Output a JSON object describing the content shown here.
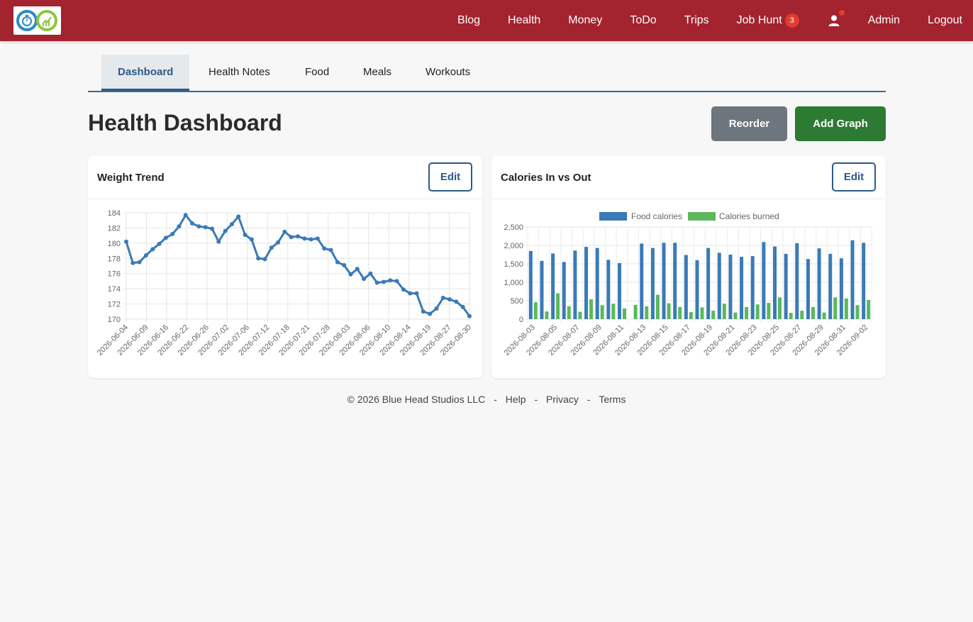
{
  "nav": {
    "links": [
      "Blog",
      "Health",
      "Money",
      "ToDo",
      "Trips",
      "Job Hunt"
    ],
    "job_hunt_badge": "3",
    "admin": "Admin",
    "logout": "Logout"
  },
  "tabs": [
    "Dashboard",
    "Health Notes",
    "Food",
    "Meals",
    "Workouts"
  ],
  "page": {
    "title": "Health Dashboard",
    "reorder": "Reorder",
    "add_graph": "Add Graph"
  },
  "cards": {
    "weight_title": "Weight Trend",
    "calories_title": "Calories In vs Out",
    "edit_label": "Edit"
  },
  "footer": {
    "copyright": "© 2026 Blue Head Studios LLC",
    "sep": "-",
    "help": "Help",
    "privacy": "Privacy",
    "terms": "Terms"
  },
  "colors": {
    "navbar": "#a3232f",
    "primary": "#2c5a87",
    "line": "#3a7ab8",
    "food": "#3a7ab8",
    "burned": "#5cb85c",
    "add_button": "#2d7a33",
    "reorder_button": "#6d757d"
  },
  "chart_data": [
    {
      "type": "line",
      "title": "Weight Trend",
      "ylim": [
        170,
        184
      ],
      "yticks": [
        170,
        172,
        174,
        176,
        178,
        180,
        182,
        184
      ],
      "xticks": [
        "2026-06-04",
        "2026-06-09",
        "2026-06-16",
        "2026-06-22",
        "2026-06-26",
        "2026-07-02",
        "2026-07-06",
        "2026-07-12",
        "2026-07-18",
        "2026-07-21",
        "2026-07-28",
        "2026-08-03",
        "2026-08-06",
        "2026-08-10",
        "2026-08-14",
        "2026-08-19",
        "2026-08-27",
        "2026-08-30"
      ],
      "grid": true,
      "values": [
        180.2,
        177.4,
        177.5,
        178.4,
        179.2,
        179.9,
        180.7,
        181.2,
        182.2,
        183.7,
        182.6,
        182.2,
        182.1,
        181.9,
        180.2,
        181.6,
        182.5,
        183.5,
        181.1,
        180.5,
        178.0,
        177.9,
        179.4,
        180.1,
        181.5,
        180.8,
        180.9,
        180.6,
        180.5,
        180.6,
        179.3,
        179.1,
        177.5,
        177.1,
        175.9,
        176.6,
        175.3,
        176.0,
        174.8,
        174.9,
        175.1,
        175.0,
        173.9,
        173.4,
        173.4,
        171.0,
        170.7,
        171.4,
        172.8,
        172.6,
        172.3,
        171.6,
        170.4
      ]
    },
    {
      "type": "bar",
      "title": "Calories In vs Out",
      "ylim": [
        0,
        2500
      ],
      "yticks": [
        "0",
        "500",
        "1,000",
        "1,500",
        "2,000",
        "2,500"
      ],
      "legend_position": "top",
      "grid": true,
      "categories": [
        "2026-08-03",
        "2026-08-04",
        "2026-08-05",
        "2026-08-06",
        "2026-08-07",
        "2026-08-08",
        "2026-08-09",
        "2026-08-10",
        "2026-08-11",
        "2026-08-12",
        "2026-08-13",
        "2026-08-14",
        "2026-08-15",
        "2026-08-16",
        "2026-08-17",
        "2026-08-18",
        "2026-08-19",
        "2026-08-20",
        "2026-08-21",
        "2026-08-22",
        "2026-08-23",
        "2026-08-24",
        "2026-08-25",
        "2026-08-26",
        "2026-08-27",
        "2026-08-28",
        "2026-08-29",
        "2026-08-30",
        "2026-08-31",
        "2026-09-01",
        "2026-09-02"
      ],
      "xticks": [
        "2026-08-03",
        "2026-08-05",
        "2026-08-07",
        "2026-08-09",
        "2026-08-11",
        "2026-08-13",
        "2026-08-15",
        "2026-08-17",
        "2026-08-19",
        "2026-08-21",
        "2026-08-23",
        "2026-08-25",
        "2026-08-27",
        "2026-08-29",
        "2026-08-31",
        "2026-09-02"
      ],
      "series": [
        {
          "name": "Food calories",
          "values": [
            1850,
            1580,
            1780,
            1550,
            1860,
            1960,
            1930,
            1610,
            1520,
            0,
            2050,
            1930,
            2070,
            2070,
            1740,
            1600,
            1930,
            1800,
            1750,
            1690,
            1710,
            2090,
            1970,
            1770,
            2060,
            1630,
            1920,
            1770,
            1650,
            2140,
            2070
          ]
        },
        {
          "name": "Calories burned",
          "values": [
            460,
            210,
            700,
            350,
            200,
            540,
            380,
            420,
            290,
            390,
            350,
            660,
            430,
            330,
            190,
            320,
            230,
            420,
            180,
            330,
            400,
            440,
            590,
            170,
            230,
            330,
            180,
            590,
            560,
            380,
            520
          ]
        }
      ]
    }
  ]
}
